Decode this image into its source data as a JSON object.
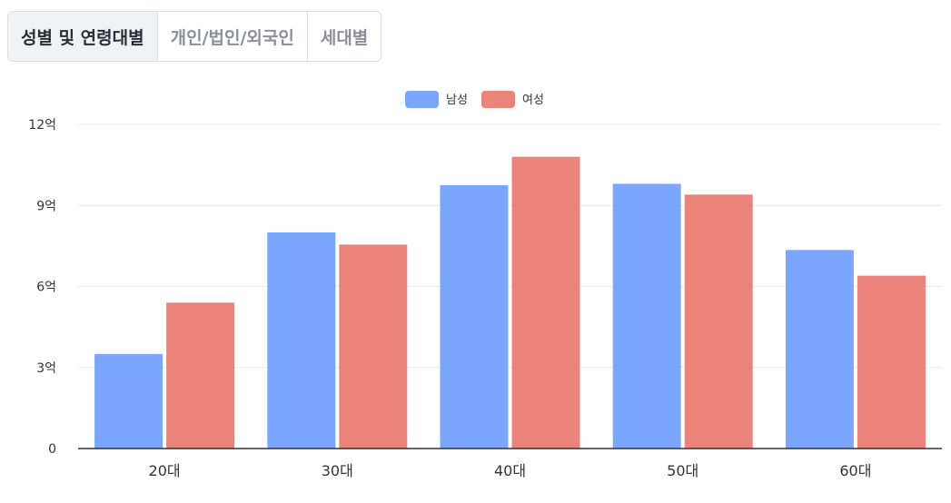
{
  "tabs": [
    {
      "label": "성별 및 연령대별",
      "active": true
    },
    {
      "label": "개인/법인/외국인",
      "active": false
    },
    {
      "label": "세대별",
      "active": false
    }
  ],
  "chart_data": {
    "type": "bar",
    "categories": [
      "20대",
      "30대",
      "40대",
      "50대",
      "60대"
    ],
    "series": [
      {
        "name": "남성",
        "color": "#6b9dfc",
        "values": [
          3.5,
          8.0,
          9.75,
          9.8,
          7.35
        ]
      },
      {
        "name": "여성",
        "color": "#e8776c",
        "values": [
          5.4,
          7.55,
          10.8,
          9.4,
          6.4
        ]
      }
    ],
    "ylim": [
      0,
      12
    ],
    "yticks": [
      0,
      3,
      6,
      9,
      12
    ],
    "ytick_labels": [
      "0",
      "3억",
      "6억",
      "9억",
      "12억"
    ],
    "grid": true,
    "legend_position": "top-center"
  }
}
